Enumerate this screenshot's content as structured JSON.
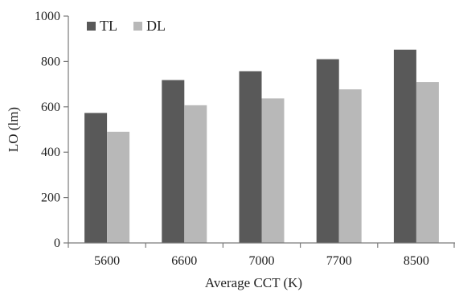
{
  "chart_data": {
    "type": "bar",
    "categories": [
      "5600",
      "6600",
      "7000",
      "7700",
      "8500"
    ],
    "series": [
      {
        "name": "TL",
        "values": [
          573,
          718,
          757,
          810,
          852
        ],
        "color": "#595959"
      },
      {
        "name": "DL",
        "values": [
          490,
          607,
          637,
          677,
          709
        ],
        "color": "#b8b8b8"
      }
    ],
    "xlabel": "Average CCT (K)",
    "ylabel": "LO (lm)",
    "ylim": [
      0,
      1000
    ],
    "yticks": [
      0,
      200,
      400,
      600,
      800,
      1000
    ],
    "grid": false,
    "legend_position": "top-left"
  }
}
